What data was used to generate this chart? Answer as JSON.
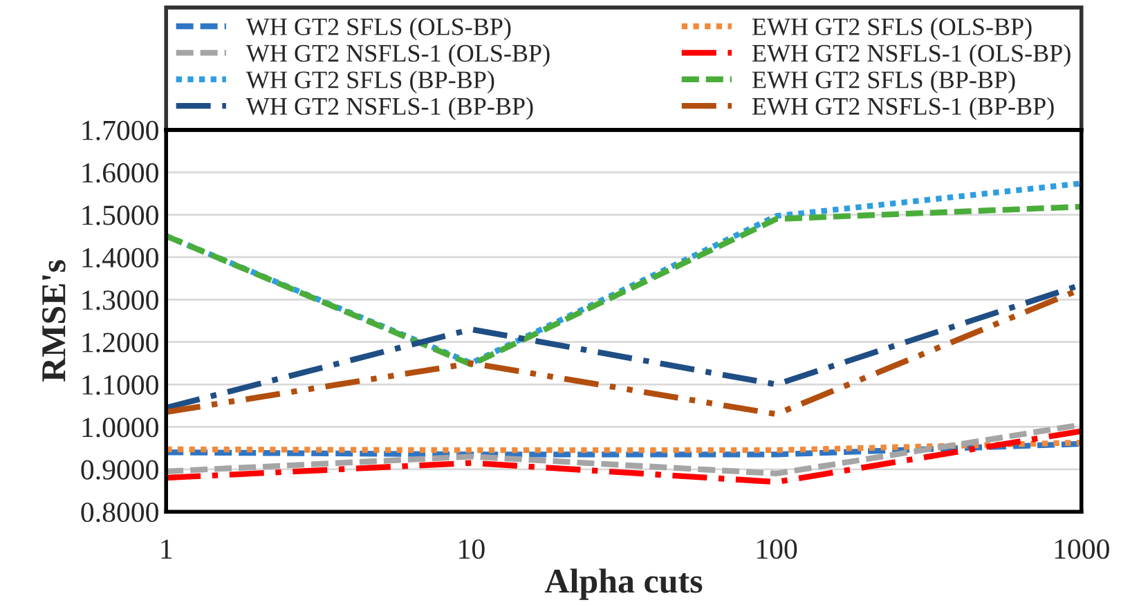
{
  "chart_data": {
    "type": "line",
    "xlabel": "Alpha cuts",
    "ylabel": "RMSE's",
    "x": [
      1,
      10,
      100,
      1000
    ],
    "log": "x",
    "xlim": [
      1,
      1000
    ],
    "xticks": [
      1,
      10,
      100,
      1000
    ],
    "ylim": [
      0.8,
      1.7
    ],
    "yticks": [
      {
        "value": 0.8,
        "label": "0.8000"
      },
      {
        "value": 0.9,
        "label": "0.9000"
      },
      {
        "value": 1.0,
        "label": "1.0000"
      },
      {
        "value": 1.1,
        "label": "1.1000"
      },
      {
        "value": 1.2,
        "label": "1.2000"
      },
      {
        "value": 1.3,
        "label": "1.3000"
      },
      {
        "value": 1.4,
        "label": "1.4000"
      },
      {
        "value": 1.5,
        "label": "1.5000"
      },
      {
        "value": 1.6,
        "label": "1.6000"
      },
      {
        "value": 1.7,
        "label": "1.7000"
      }
    ],
    "grid": "y",
    "legend": "top",
    "marker": "none",
    "series": [
      {
        "name": "WH GT2 SFLS (OLS-BP)",
        "color": "#2e75c5",
        "line_style": "dashed",
        "values": [
          0.94,
          0.935,
          0.935,
          0.96
        ]
      },
      {
        "name": "EWH GT2 SFLS (OLS-BP)",
        "color": "#f08a3a",
        "line_style": "dotted",
        "values": [
          0.947,
          0.945,
          0.945,
          0.963
        ]
      },
      {
        "name": "WH GT2 NSFLS-1 (OLS-BP)",
        "color": "#a5a5a5",
        "line_style": "dashed",
        "values": [
          0.895,
          0.93,
          0.89,
          1.005
        ]
      },
      {
        "name": "EWH GT2 NSFLS-1 (OLS-BP)",
        "color": "#ff0000",
        "line_style": "dashdot",
        "values": [
          0.88,
          0.915,
          0.87,
          0.99
        ]
      },
      {
        "name": "WH GT2 SFLS (BP-BP)",
        "color": "#2e9ee0",
        "line_style": "dotted",
        "values": [
          1.45,
          1.15,
          1.497,
          1.574
        ]
      },
      {
        "name": "EWH GT2 SFLS (BP-BP)",
        "color": "#4aad3a",
        "line_style": "dashed",
        "values": [
          1.45,
          1.147,
          1.49,
          1.519
        ]
      },
      {
        "name": "WH GT2 NSFLS-1 (BP-BP)",
        "color": "#1f4e84",
        "line_style": "dashdot",
        "values": [
          1.045,
          1.23,
          1.1,
          1.335
        ]
      },
      {
        "name": "EWH GT2 NSFLS-1 (BP-BP)",
        "color": "#b24e0e",
        "line_style": "dashdotdot",
        "values": [
          1.035,
          1.15,
          1.03,
          1.325
        ]
      }
    ]
  }
}
